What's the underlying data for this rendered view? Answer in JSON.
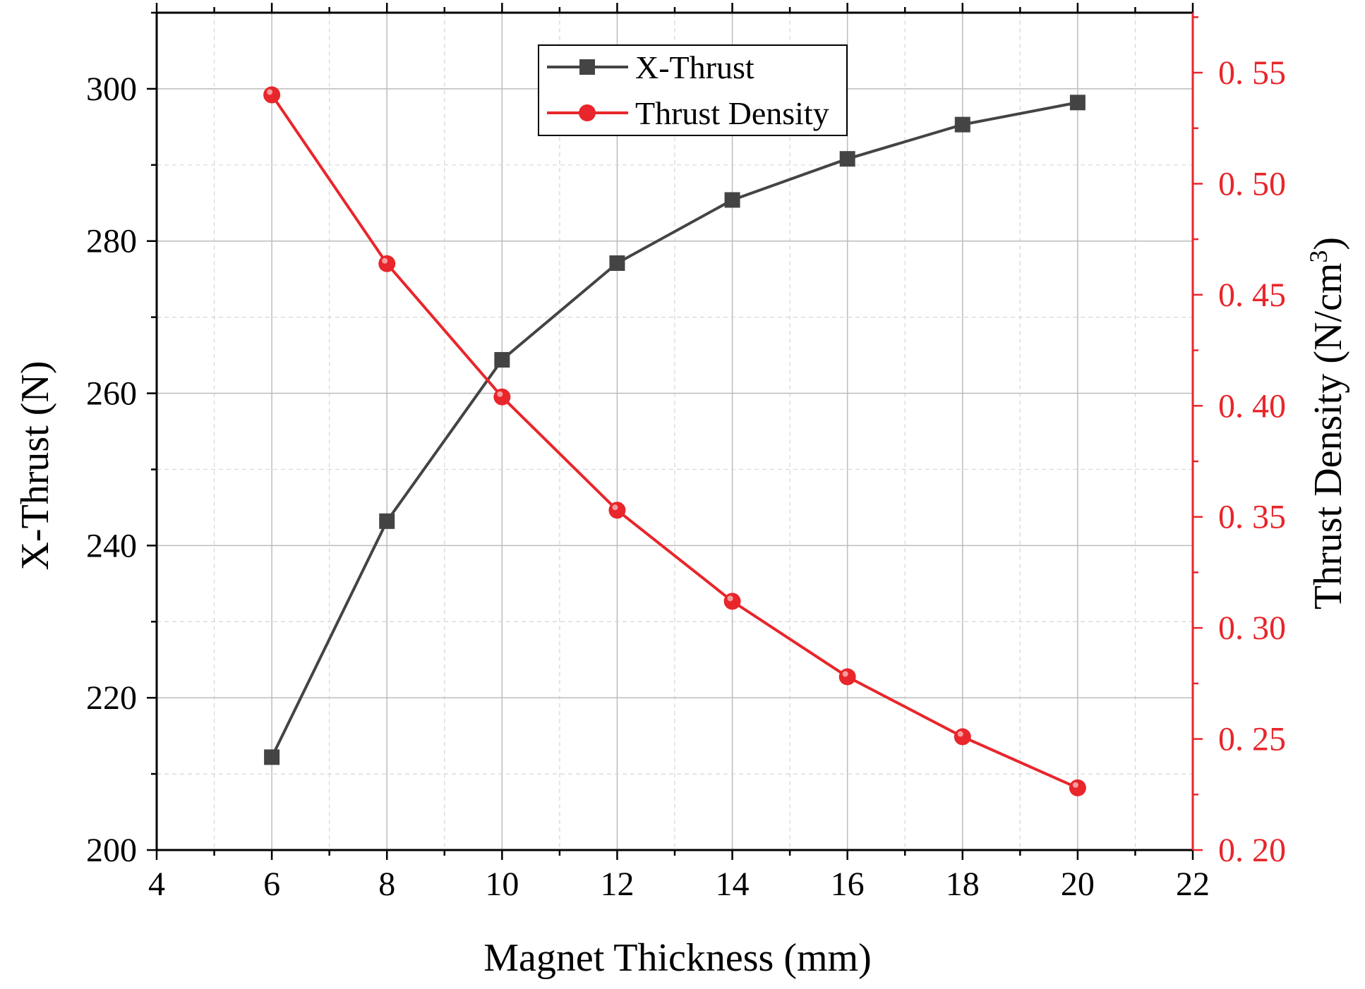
{
  "chart_data": {
    "type": "line",
    "title": "",
    "xlabel": "Magnet Thickness (mm)",
    "ylabel_left": "X-Thrust (N)",
    "ylabel_right": "Thrust Density (N/cm",
    "ylabel_right_sup": "3",
    "ylabel_right_close": ")",
    "xlim": [
      4,
      22
    ],
    "ylim_left": [
      200,
      310
    ],
    "ylim_right": [
      0.2,
      0.577
    ],
    "x_ticks": [
      4,
      6,
      8,
      10,
      12,
      14,
      16,
      18,
      20,
      22
    ],
    "y_left_ticks": [
      200,
      220,
      240,
      260,
      280,
      300
    ],
    "y_right_ticks": [
      0.2,
      0.25,
      0.3,
      0.35,
      0.4,
      0.45,
      0.5,
      0.55
    ],
    "y_right_tick_labels": [
      "0. 20",
      "0. 25",
      "0. 30",
      "0. 35",
      "0. 40",
      "0. 45",
      "0. 50",
      "0. 55"
    ],
    "grid": true,
    "legend_position": "top-center",
    "x": [
      6,
      8,
      10,
      12,
      14,
      16,
      18,
      20
    ],
    "series": [
      {
        "name": "X-Thrust",
        "axis": "left",
        "marker": "square",
        "color": "#444444",
        "values": [
          212.2,
          243.2,
          264.4,
          277.1,
          285.4,
          290.8,
          295.3,
          298.2
        ]
      },
      {
        "name": "Thrust Density",
        "axis": "right",
        "marker": "circle",
        "color": "#e8262b",
        "values": [
          0.54,
          0.464,
          0.404,
          0.353,
          0.312,
          0.278,
          0.251,
          0.228
        ]
      }
    ],
    "colors": {
      "axis": "#000000",
      "right_axis": "#e8262b",
      "grid_major": "#bcbcbc",
      "grid_minor": "#d6d6d6"
    }
  }
}
